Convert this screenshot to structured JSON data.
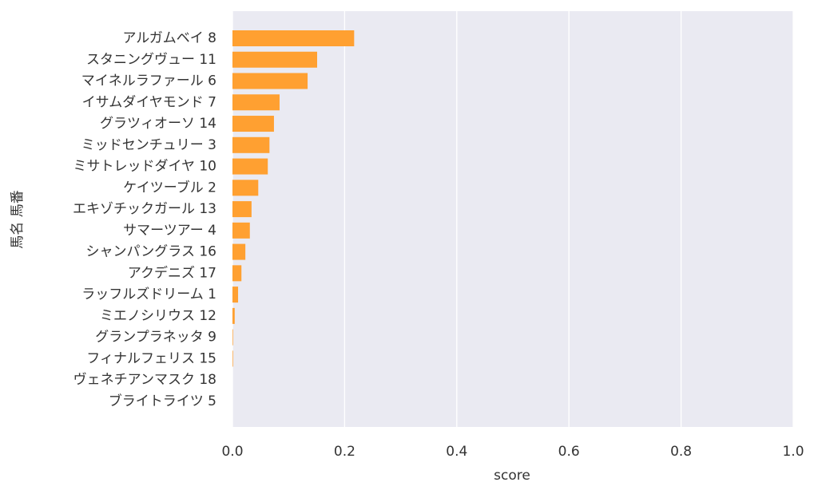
{
  "chart_data": {
    "type": "barh",
    "xlabel": "score",
    "ylabel": "馬名 馬番",
    "categories": [
      "アルガムベイ 8",
      "スタニングヴュー 11",
      "マイネルラファール 6",
      "イサムダイヤモンド 7",
      "グラツィオーソ 14",
      "ミッドセンチュリー 3",
      "ミサトレッドダイヤ 10",
      "ケイツーブル 2",
      "エキゾチックガール 13",
      "サマーツアー 4",
      "シャンパングラス 16",
      "アクデニズ 17",
      "ラッフルズドリーム 1",
      "ミエノシリウス 12",
      "グランプラネッタ 9",
      "フィナルフェリス 15",
      "ヴェネチアンマスク 18",
      "ブライトライツ 5"
    ],
    "values": [
      0.217,
      0.151,
      0.134,
      0.084,
      0.074,
      0.066,
      0.063,
      0.046,
      0.034,
      0.031,
      0.023,
      0.016,
      0.01,
      0.004,
      0.001,
      0.001,
      0,
      0
    ],
    "color": "#ffa031",
    "xlim": [
      0,
      1
    ],
    "xticks": [
      {
        "value": 0,
        "label": "0.0"
      },
      {
        "value": 0.2,
        "label": "0.2"
      },
      {
        "value": 0.4,
        "label": "0.4"
      },
      {
        "value": 0.6,
        "label": "0.6"
      },
      {
        "value": 0.8,
        "label": "0.8"
      },
      {
        "value": 1,
        "label": "1.0"
      }
    ],
    "grid": true
  }
}
